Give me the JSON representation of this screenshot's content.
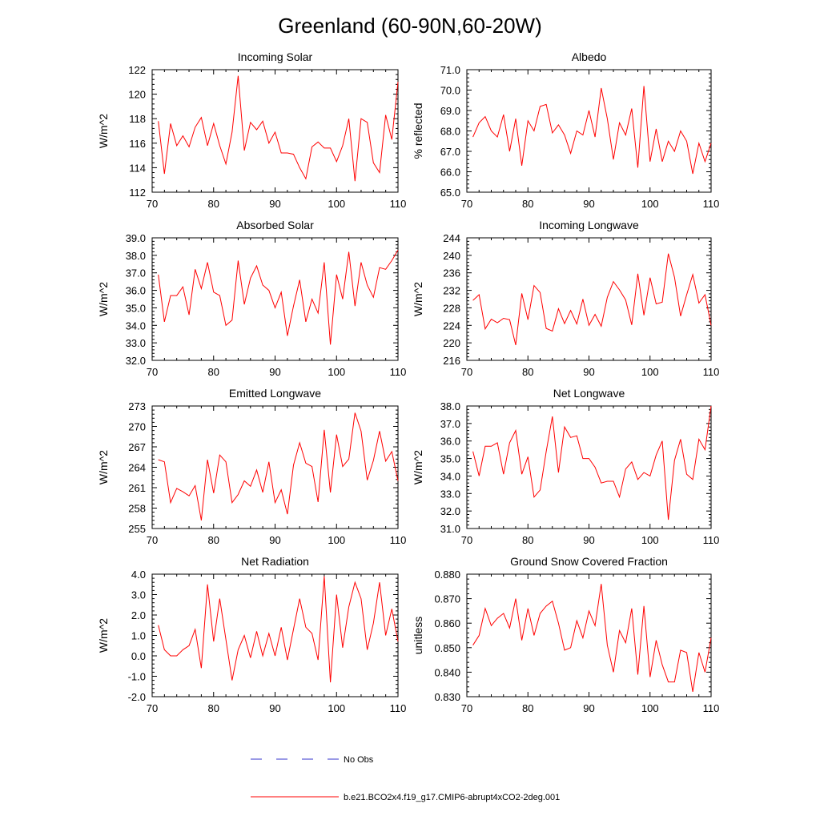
{
  "figure": {
    "title": "Greenland (60-90N,60-20W)",
    "legend": [
      {
        "label": "No Obs",
        "color": "#3333cc",
        "style": "dashed"
      },
      {
        "label": "b.e21.BCO2x4.f19_g17.CMIP6-abrupt4xCO2-2deg.001",
        "color": "#ff0000",
        "style": "solid"
      }
    ]
  },
  "chart_data": [
    {
      "type": "line",
      "title": "Incoming Solar",
      "ylabel": "W/m^2",
      "xlim": [
        70,
        110
      ],
      "xticks": [
        "70",
        "80",
        "90",
        "100",
        "110"
      ],
      "ylim": [
        112,
        122
      ],
      "yticks": [
        "112",
        "114",
        "116",
        "118",
        "120",
        "122"
      ],
      "x_start": 71,
      "series": [
        {
          "name": "b.e21.BCO2x4.f19_g17.CMIP6-abrupt4xCO2-2deg.001",
          "color": "#ff0000",
          "values": [
            117.8,
            113.5,
            117.6,
            115.8,
            116.6,
            115.7,
            117.3,
            118.1,
            115.8,
            117.6,
            115.8,
            114.3,
            116.9,
            121.5,
            115.4,
            117.7,
            117.1,
            117.8,
            116.0,
            116.9,
            115.2,
            115.2,
            115.1,
            114.0,
            113.1,
            115.7,
            116.1,
            115.6,
            115.6,
            114.5,
            115.8,
            118.0,
            112.9,
            118.0,
            117.7,
            114.4,
            113.6,
            118.3,
            116.3,
            121.0
          ]
        }
      ]
    },
    {
      "type": "line",
      "title": "Albedo",
      "ylabel": "% reflected",
      "xlim": [
        70,
        110
      ],
      "xticks": [
        "70",
        "80",
        "90",
        "100",
        "110"
      ],
      "ylim": [
        65.0,
        71.0
      ],
      "yticks": [
        "65.0",
        "66.0",
        "67.0",
        "68.0",
        "69.0",
        "70.0",
        "71.0"
      ],
      "x_start": 71,
      "series": [
        {
          "name": "b.e21.BCO2x4.f19_g17.CMIP6-abrupt4xCO2-2deg.001",
          "color": "#ff0000",
          "values": [
            67.7,
            68.4,
            68.7,
            68.0,
            67.7,
            68.8,
            67.0,
            68.6,
            66.3,
            68.5,
            68.0,
            69.2,
            69.3,
            67.9,
            68.3,
            67.8,
            66.9,
            68.0,
            67.8,
            69.0,
            67.7,
            70.1,
            68.6,
            66.6,
            68.4,
            67.8,
            69.1,
            66.2,
            70.2,
            66.5,
            68.1,
            66.5,
            67.5,
            67.0,
            68.0,
            67.5,
            65.9,
            67.4,
            66.5,
            67.4
          ]
        }
      ]
    },
    {
      "type": "line",
      "title": "Absorbed Solar",
      "ylabel": "W/m^2",
      "xlim": [
        70,
        110
      ],
      "xticks": [
        "70",
        "80",
        "90",
        "100",
        "110"
      ],
      "ylim": [
        32.0,
        39.0
      ],
      "yticks": [
        "32.0",
        "33.0",
        "34.0",
        "35.0",
        "36.0",
        "37.0",
        "38.0",
        "39.0"
      ],
      "x_start": 71,
      "series": [
        {
          "name": "b.e21.BCO2x4.f19_g17.CMIP6-abrupt4xCO2-2deg.001",
          "color": "#ff0000",
          "values": [
            36.9,
            34.2,
            35.7,
            35.7,
            36.2,
            34.6,
            37.2,
            36.1,
            37.6,
            35.9,
            35.7,
            34.0,
            34.3,
            37.7,
            35.2,
            36.7,
            37.4,
            36.3,
            36.0,
            35.0,
            35.9,
            33.4,
            35.1,
            36.6,
            34.2,
            35.5,
            34.7,
            37.6,
            32.9,
            36.9,
            35.5,
            38.2,
            35.1,
            37.6,
            36.3,
            35.6,
            37.3,
            37.2,
            37.7,
            38.3
          ]
        }
      ]
    },
    {
      "type": "line",
      "title": "Incoming Longwave",
      "ylabel": "W/m^2",
      "xlim": [
        70,
        110
      ],
      "xticks": [
        "70",
        "80",
        "90",
        "100",
        "110"
      ],
      "ylim": [
        216,
        244
      ],
      "yticks": [
        "216",
        "220",
        "224",
        "228",
        "232",
        "236",
        "240",
        "244"
      ],
      "x_start": 71,
      "series": [
        {
          "name": "b.e21.BCO2x4.f19_g17.CMIP6-abrupt4xCO2-2deg.001",
          "color": "#ff0000",
          "values": [
            229.7,
            231.0,
            223.2,
            225.4,
            224.6,
            225.6,
            225.3,
            219.5,
            231.3,
            225.3,
            233.1,
            231.5,
            223.3,
            222.7,
            227.8,
            224.4,
            227.4,
            224.3,
            230.0,
            224.0,
            226.5,
            223.8,
            230.4,
            234.0,
            232.1,
            229.8,
            224.1,
            235.8,
            226.3,
            234.9,
            228.9,
            229.3,
            240.4,
            235.0,
            226.1,
            231.0,
            235.6,
            229.1,
            231.0,
            224.0
          ]
        }
      ]
    },
    {
      "type": "line",
      "title": "Emitted Longwave",
      "ylabel": "W/m^2",
      "xlim": [
        70,
        110
      ],
      "xticks": [
        "70",
        "80",
        "90",
        "100",
        "110"
      ],
      "ylim": [
        255,
        273
      ],
      "yticks": [
        "255",
        "258",
        "261",
        "264",
        "267",
        "270",
        "273"
      ],
      "x_start": 71,
      "series": [
        {
          "name": "b.e21.BCO2x4.f19_g17.CMIP6-abrupt4xCO2-2deg.001",
          "color": "#ff0000",
          "values": [
            265.1,
            264.8,
            258.8,
            260.9,
            260.4,
            259.8,
            261.3,
            256.2,
            265.1,
            260.2,
            265.8,
            264.8,
            258.8,
            260.0,
            262.0,
            261.2,
            263.6,
            260.3,
            264.8,
            258.8,
            260.7,
            257.1,
            264.3,
            267.6,
            264.6,
            264.1,
            258.9,
            269.5,
            260.3,
            268.8,
            264.1,
            265.2,
            272.0,
            269.3,
            262.1,
            265.0,
            269.3,
            264.9,
            266.3,
            262.0
          ]
        }
      ]
    },
    {
      "type": "line",
      "title": "Net Longwave",
      "ylabel": "W/m^2",
      "xlim": [
        70,
        110
      ],
      "xticks": [
        "70",
        "80",
        "90",
        "100",
        "110"
      ],
      "ylim": [
        31.0,
        38.0
      ],
      "yticks": [
        "31.0",
        "32.0",
        "33.0",
        "34.0",
        "35.0",
        "36.0",
        "37.0",
        "38.0"
      ],
      "x_start": 71,
      "series": [
        {
          "name": "b.e21.BCO2x4.f19_g17.CMIP6-abrupt4xCO2-2deg.001",
          "color": "#ff0000",
          "values": [
            35.4,
            34.0,
            35.7,
            35.7,
            35.9,
            34.1,
            35.9,
            36.6,
            34.1,
            35.1,
            32.8,
            33.2,
            35.4,
            37.4,
            34.2,
            36.8,
            36.2,
            36.3,
            35.0,
            35.0,
            34.5,
            33.6,
            33.7,
            33.7,
            32.8,
            34.4,
            34.8,
            33.8,
            34.2,
            34.0,
            35.2,
            36.0,
            31.5,
            34.9,
            36.1,
            34.1,
            33.8,
            36.1,
            35.5,
            38.0
          ]
        }
      ]
    },
    {
      "type": "line",
      "title": "Net Radiation",
      "ylabel": "W/m^2",
      "xlim": [
        70,
        110
      ],
      "xticks": [
        "70",
        "80",
        "90",
        "100",
        "110"
      ],
      "ylim": [
        -2.0,
        4.0
      ],
      "yticks": [
        "-2.0",
        "-1.0",
        "0.0",
        "1.0",
        "2.0",
        "3.0",
        "4.0"
      ],
      "x_start": 71,
      "series": [
        {
          "name": "b.e21.BCO2x4.f19_g17.CMIP6-abrupt4xCO2-2deg.001",
          "color": "#ff0000",
          "values": [
            1.5,
            0.3,
            0.0,
            0.0,
            0.3,
            0.5,
            1.3,
            -0.6,
            3.5,
            0.7,
            2.8,
            0.8,
            -1.2,
            0.3,
            1.0,
            -0.1,
            1.2,
            0.0,
            1.1,
            0.0,
            1.4,
            -0.2,
            1.3,
            2.8,
            1.4,
            1.1,
            -0.2,
            3.9,
            -1.3,
            3.0,
            0.4,
            2.4,
            3.6,
            2.8,
            0.3,
            1.6,
            3.6,
            1.0,
            2.3,
            0.7
          ]
        }
      ]
    },
    {
      "type": "line",
      "title": "Ground Snow Covered Fraction",
      "ylabel": "unitless",
      "xlim": [
        70,
        110
      ],
      "xticks": [
        "70",
        "80",
        "90",
        "100",
        "110"
      ],
      "ylim": [
        0.83,
        0.88
      ],
      "yticks": [
        "0.830",
        "0.840",
        "0.850",
        "0.860",
        "0.870",
        "0.880"
      ],
      "x_start": 71,
      "series": [
        {
          "name": "b.e21.BCO2x4.f19_g17.CMIP6-abrupt4xCO2-2deg.001",
          "color": "#ff0000",
          "values": [
            0.851,
            0.855,
            0.866,
            0.859,
            0.862,
            0.864,
            0.858,
            0.87,
            0.853,
            0.866,
            0.855,
            0.864,
            0.867,
            0.869,
            0.86,
            0.849,
            0.85,
            0.861,
            0.854,
            0.865,
            0.859,
            0.876,
            0.851,
            0.84,
            0.857,
            0.852,
            0.866,
            0.839,
            0.867,
            0.838,
            0.853,
            0.843,
            0.836,
            0.836,
            0.849,
            0.848,
            0.832,
            0.848,
            0.84,
            0.854
          ]
        }
      ]
    }
  ]
}
